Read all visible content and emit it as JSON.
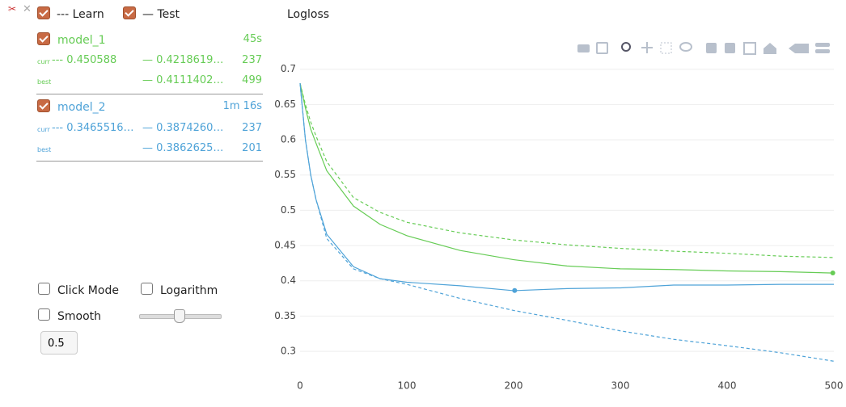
{
  "legend": {
    "learn": "--- Learn",
    "test": "— Test"
  },
  "models": [
    {
      "name": "model_1",
      "time": "45s",
      "curr_label": "curr",
      "curr_learn": "--- 0.450588",
      "curr_test": "— 0.4218619…",
      "curr_iter": "237",
      "best_label": "best",
      "best_test": "— 0.4111402…",
      "best_iter": "499"
    },
    {
      "name": "model_2",
      "time": "1m 16s",
      "curr_label": "curr",
      "curr_learn": "--- 0.3465516…",
      "curr_test": "— 0.3874260…",
      "curr_iter": "237",
      "best_label": "best",
      "best_test": "— 0.3862625…",
      "best_iter": "201"
    }
  ],
  "controls": {
    "click_mode": "Click Mode",
    "logarithm": "Logarithm",
    "smooth": "Smooth",
    "smooth_value": "0.5"
  },
  "chart_data": {
    "type": "line",
    "title": "Logloss",
    "x": [
      0,
      5,
      10,
      15,
      25,
      50,
      75,
      100,
      150,
      200,
      250,
      300,
      350,
      400,
      450,
      500
    ],
    "series": [
      {
        "name": "model_1",
        "color": "#66cc55",
        "dash": true,
        "values": [
          0.68,
          0.65,
          0.625,
          0.605,
          0.569,
          0.518,
          0.497,
          0.483,
          0.468,
          0.458,
          0.451,
          0.446,
          0.442,
          0.439,
          0.435,
          0.433
        ]
      },
      {
        "name": "model_1",
        "color": "#66cc55",
        "dash": false,
        "values": [
          0.68,
          0.645,
          0.615,
          0.595,
          0.556,
          0.506,
          0.48,
          0.464,
          0.443,
          0.43,
          0.421,
          0.417,
          0.416,
          0.414,
          0.413,
          0.411
        ]
      },
      {
        "name": "model_2",
        "color": "#4fa3d8",
        "dash": true,
        "values": [
          0.68,
          0.6,
          0.55,
          0.515,
          0.46,
          0.417,
          0.403,
          0.395,
          0.375,
          0.358,
          0.344,
          0.329,
          0.317,
          0.308,
          0.298,
          0.286
        ]
      },
      {
        "name": "model_2",
        "color": "#4fa3d8",
        "dash": false,
        "values": [
          0.68,
          0.6,
          0.55,
          0.515,
          0.466,
          0.42,
          0.403,
          0.398,
          0.393,
          0.386,
          0.389,
          0.39,
          0.394,
          0.394,
          0.395,
          0.395
        ]
      }
    ],
    "best_points": [
      {
        "x": 499,
        "y": 0.4111,
        "color": "#66cc55"
      },
      {
        "x": 201,
        "y": 0.3863,
        "color": "#4fa3d8"
      }
    ],
    "xlim": [
      0,
      500
    ],
    "ylim": [
      0.26,
      0.71
    ],
    "xticks": [
      0,
      100,
      200,
      300,
      400,
      500
    ],
    "yticks": [
      0.3,
      0.35,
      0.4,
      0.45,
      0.5,
      0.55,
      0.6,
      0.65,
      0.7
    ],
    "grid": true
  }
}
